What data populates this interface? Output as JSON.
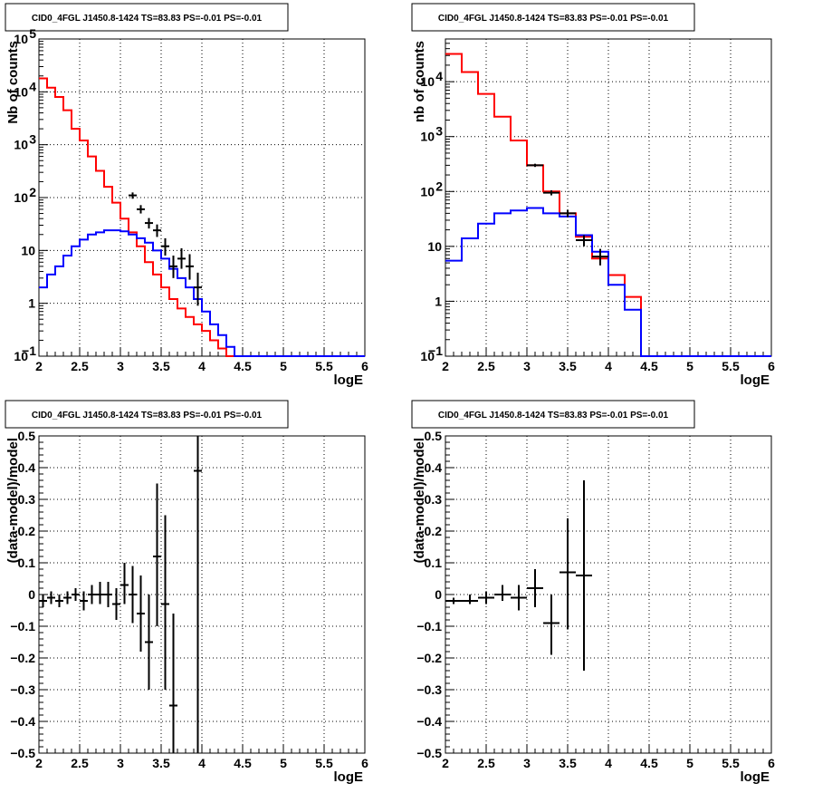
{
  "chart_data": [
    {
      "type": "line",
      "title": "CID0_4FGL J1450.8-1424 TS=83.83 PS=-0.01 PS=-0.01",
      "xlabel": "logE",
      "ylabel": "Nb of counts",
      "xlim": [
        2,
        6
      ],
      "ylim": [
        0.1,
        100000
      ],
      "yscale": "log",
      "grid": true,
      "xticks": [
        "2",
        "2.5",
        "3",
        "3.5",
        "4",
        "4.5",
        "5",
        "5.5",
        "6"
      ],
      "yticks": [
        {
          "v": 0.1,
          "label": "10",
          "exp": "−1"
        },
        {
          "v": 1,
          "label": "1"
        },
        {
          "v": 10,
          "label": "10"
        },
        {
          "v": 100,
          "label": "10",
          "exp": "2"
        },
        {
          "v": 1000,
          "label": "10",
          "exp": "3"
        },
        {
          "v": 10000,
          "label": "10",
          "exp": "4"
        },
        {
          "v": 100000,
          "label": "10",
          "exp": "5"
        }
      ],
      "bin_edges": [
        2.0,
        2.1,
        2.2,
        2.3,
        2.4,
        2.5,
        2.6,
        2.7,
        2.8,
        2.9,
        3.0,
        3.1,
        3.2,
        3.3,
        3.4,
        3.5,
        3.6,
        3.7,
        3.8,
        3.9,
        4.0,
        4.1,
        4.2,
        4.3,
        4.4,
        4.5,
        4.6,
        4.7,
        4.8,
        4.9,
        5.0,
        5.1,
        5.2,
        5.3,
        5.4,
        5.5,
        5.6,
        5.7,
        5.8,
        5.9,
        6.0
      ],
      "series": [
        {
          "color": "#ff0000",
          "values": [
            18000,
            12000,
            8000,
            4500,
            2000,
            1200,
            600,
            320,
            160,
            80,
            40,
            22,
            12,
            6,
            3.5,
            2.0,
            1.2,
            0.8,
            0.55,
            0.4,
            0.3,
            0.2,
            0.14,
            0.1,
            0.1,
            0.1,
            0.1,
            0.1,
            0.1,
            0.1,
            0.1,
            0.1,
            0.1,
            0.1,
            0.1,
            0.1,
            0.1,
            0.1,
            0.1,
            0.1
          ]
        },
        {
          "color": "#0000ff",
          "values": [
            2,
            3.5,
            5,
            8,
            12,
            16,
            20,
            22,
            24,
            24,
            23,
            20,
            17,
            14,
            10,
            7,
            4.5,
            3,
            2,
            1.2,
            0.7,
            0.4,
            0.25,
            0.15,
            0.1,
            0.1,
            0.1,
            0.1,
            0.1,
            0.1,
            0.1,
            0.1,
            0.1,
            0.1,
            0.1,
            0.1,
            0.1,
            0.1,
            0.1,
            0.1
          ]
        }
      ],
      "data_points": [
        {
          "x": 3.15,
          "y": 110,
          "xerr": 0.05,
          "ylo": 95,
          "yhi": 125
        },
        {
          "x": 3.25,
          "y": 60,
          "xerr": 0.05,
          "ylo": 50,
          "yhi": 72
        },
        {
          "x": 3.35,
          "y": 33,
          "xerr": 0.05,
          "ylo": 26,
          "yhi": 41
        },
        {
          "x": 3.45,
          "y": 24,
          "xerr": 0.05,
          "ylo": 18,
          "yhi": 31
        },
        {
          "x": 3.55,
          "y": 12,
          "xerr": 0.05,
          "ylo": 8,
          "yhi": 17
        },
        {
          "x": 3.65,
          "y": 5,
          "xerr": 0.05,
          "ylo": 3,
          "yhi": 8
        },
        {
          "x": 3.75,
          "y": 7,
          "xerr": 0.05,
          "ylo": 4.5,
          "yhi": 11
        },
        {
          "x": 3.85,
          "y": 5,
          "xerr": 0.05,
          "ylo": 2.8,
          "yhi": 8.5
        },
        {
          "x": 3.95,
          "y": 2,
          "xerr": 0.05,
          "ylo": 0.9,
          "yhi": 3.8
        }
      ]
    },
    {
      "type": "line",
      "title": "CID0_4FGL J1450.8-1424 TS=83.83 PS=-0.01 PS=-0.01",
      "xlabel": "logE",
      "ylabel": "nb of counts",
      "xlim": [
        2,
        6
      ],
      "ylim": [
        0.1,
        60000
      ],
      "yscale": "log",
      "grid": true,
      "xticks": [
        "2",
        "2.5",
        "3",
        "3.5",
        "4",
        "4.5",
        "5",
        "5.5",
        "6"
      ],
      "yticks": [
        {
          "v": 0.1,
          "label": "10",
          "exp": "−1"
        },
        {
          "v": 1,
          "label": "1"
        },
        {
          "v": 10,
          "label": "10"
        },
        {
          "v": 100,
          "label": "10",
          "exp": "2"
        },
        {
          "v": 1000,
          "label": "10",
          "exp": "3"
        },
        {
          "v": 10000,
          "label": "10",
          "exp": "4"
        }
      ],
      "bin_edges": [
        2.0,
        2.2,
        2.4,
        2.6,
        2.8,
        3.0,
        3.2,
        3.4,
        3.6,
        3.8,
        4.0,
        4.2,
        4.4,
        4.6,
        4.8,
        5.0,
        5.2,
        5.4,
        5.6,
        5.8,
        6.0
      ],
      "series": [
        {
          "color": "#ff0000",
          "values": [
            32000,
            15000,
            6000,
            2300,
            850,
            300,
            100,
            40,
            15,
            6,
            3,
            1.2,
            0.1,
            0.1,
            0.1,
            0.1,
            0.1,
            0.1,
            0.1,
            0.1
          ]
        },
        {
          "color": "#0000ff",
          "values": [
            5.5,
            14,
            26,
            40,
            45,
            50,
            40,
            35,
            16,
            8,
            2,
            0.7,
            0.1,
            0.1,
            0.1,
            0.1,
            0.1,
            0.1,
            0.1,
            0.1
          ]
        }
      ],
      "data_points": [
        {
          "x": 3.1,
          "y": 300,
          "xerr": 0.1,
          "ylo": 280,
          "yhi": 320
        },
        {
          "x": 3.3,
          "y": 95,
          "xerr": 0.1,
          "ylo": 85,
          "yhi": 105
        },
        {
          "x": 3.5,
          "y": 40,
          "xerr": 0.1,
          "ylo": 34,
          "yhi": 46
        },
        {
          "x": 3.7,
          "y": 13,
          "xerr": 0.1,
          "ylo": 10,
          "yhi": 16
        },
        {
          "x": 3.9,
          "y": 6.5,
          "xerr": 0.1,
          "ylo": 4.5,
          "yhi": 9
        }
      ]
    },
    {
      "type": "scatter",
      "title": "CID0_4FGL J1450.8-1424 TS=83.83 PS=-0.01 PS=-0.01",
      "xlabel": "logE",
      "ylabel": "(data-model)/model",
      "xlim": [
        2,
        6
      ],
      "ylim": [
        -0.5,
        0.5
      ],
      "yscale": "linear",
      "grid": true,
      "xticks": [
        "2",
        "2.5",
        "3",
        "3.5",
        "4",
        "4.5",
        "5",
        "5.5",
        "6"
      ],
      "yticks": [
        {
          "v": -0.5,
          "label": "−0.5"
        },
        {
          "v": -0.4,
          "label": "−0.4"
        },
        {
          "v": -0.3,
          "label": "−0.3"
        },
        {
          "v": -0.2,
          "label": "−0.2"
        },
        {
          "v": -0.1,
          "label": "−0.1"
        },
        {
          "v": 0,
          "label": "0"
        },
        {
          "v": 0.1,
          "label": "0.1"
        },
        {
          "v": 0.2,
          "label": "0.2"
        },
        {
          "v": 0.3,
          "label": "0.3"
        },
        {
          "v": 0.4,
          "label": "0.4"
        },
        {
          "v": 0.5,
          "label": "0.5"
        }
      ],
      "data_points": [
        {
          "x": 2.05,
          "y": -0.02,
          "xerr": 0.05,
          "ylo": -0.04,
          "yhi": 0.0
        },
        {
          "x": 2.15,
          "y": -0.01,
          "xerr": 0.05,
          "ylo": -0.03,
          "yhi": 0.01
        },
        {
          "x": 2.25,
          "y": -0.02,
          "xerr": 0.05,
          "ylo": -0.04,
          "yhi": 0.0
        },
        {
          "x": 2.35,
          "y": -0.01,
          "xerr": 0.05,
          "ylo": -0.03,
          "yhi": 0.01
        },
        {
          "x": 2.45,
          "y": 0.0,
          "xerr": 0.05,
          "ylo": -0.02,
          "yhi": 0.02
        },
        {
          "x": 2.55,
          "y": -0.02,
          "xerr": 0.05,
          "ylo": -0.05,
          "yhi": 0.01
        },
        {
          "x": 2.65,
          "y": 0.0,
          "xerr": 0.05,
          "ylo": -0.03,
          "yhi": 0.03
        },
        {
          "x": 2.75,
          "y": 0.0,
          "xerr": 0.05,
          "ylo": -0.03,
          "yhi": 0.04
        },
        {
          "x": 2.85,
          "y": 0.0,
          "xerr": 0.05,
          "ylo": -0.04,
          "yhi": 0.04
        },
        {
          "x": 2.95,
          "y": -0.03,
          "xerr": 0.05,
          "ylo": -0.08,
          "yhi": 0.02
        },
        {
          "x": 3.05,
          "y": 0.03,
          "xerr": 0.05,
          "ylo": -0.03,
          "yhi": 0.1
        },
        {
          "x": 3.15,
          "y": 0.0,
          "xerr": 0.05,
          "ylo": -0.09,
          "yhi": 0.09
        },
        {
          "x": 3.25,
          "y": -0.06,
          "xerr": 0.05,
          "ylo": -0.18,
          "yhi": 0.06
        },
        {
          "x": 3.35,
          "y": -0.15,
          "xerr": 0.05,
          "ylo": -0.3,
          "yhi": 0.0
        },
        {
          "x": 3.45,
          "y": 0.12,
          "xerr": 0.05,
          "ylo": -0.1,
          "yhi": 0.35
        },
        {
          "x": 3.55,
          "y": -0.03,
          "xerr": 0.05,
          "ylo": -0.3,
          "yhi": 0.25
        },
        {
          "x": 3.65,
          "y": -0.35,
          "xerr": 0.05,
          "ylo": -0.5,
          "yhi": -0.06
        },
        {
          "x": 3.95,
          "y": 0.39,
          "xerr": 0.05,
          "ylo": -0.5,
          "yhi": 0.5
        }
      ]
    },
    {
      "type": "scatter",
      "title": "CID0_4FGL J1450.8-1424 TS=83.83 PS=-0.01 PS=-0.01",
      "xlabel": "logE",
      "ylabel": "(data-model)/model",
      "xlim": [
        2,
        6
      ],
      "ylim": [
        -0.5,
        0.5
      ],
      "yscale": "linear",
      "grid": true,
      "xticks": [
        "2",
        "2.5",
        "3",
        "3.5",
        "4",
        "4.5",
        "5",
        "5.5",
        "6"
      ],
      "yticks": [
        {
          "v": -0.5,
          "label": "−0.5"
        },
        {
          "v": -0.4,
          "label": "−0.4"
        },
        {
          "v": -0.3,
          "label": "−0.3"
        },
        {
          "v": -0.2,
          "label": "−0.2"
        },
        {
          "v": -0.1,
          "label": "−0.1"
        },
        {
          "v": 0,
          "label": "0"
        },
        {
          "v": 0.1,
          "label": "0.1"
        },
        {
          "v": 0.2,
          "label": "0.2"
        },
        {
          "v": 0.3,
          "label": "0.3"
        },
        {
          "v": 0.4,
          "label": "0.4"
        },
        {
          "v": 0.5,
          "label": "0.5"
        }
      ],
      "data_points": [
        {
          "x": 2.1,
          "y": -0.02,
          "xerr": 0.1,
          "ylo": -0.03,
          "yhi": -0.01
        },
        {
          "x": 2.3,
          "y": -0.02,
          "xerr": 0.1,
          "ylo": -0.03,
          "yhi": 0.0
        },
        {
          "x": 2.5,
          "y": -0.01,
          "xerr": 0.1,
          "ylo": -0.03,
          "yhi": 0.01
        },
        {
          "x": 2.7,
          "y": 0.0,
          "xerr": 0.1,
          "ylo": -0.02,
          "yhi": 0.03
        },
        {
          "x": 2.9,
          "y": -0.01,
          "xerr": 0.1,
          "ylo": -0.05,
          "yhi": 0.03
        },
        {
          "x": 3.1,
          "y": 0.02,
          "xerr": 0.1,
          "ylo": -0.04,
          "yhi": 0.08
        },
        {
          "x": 3.3,
          "y": -0.09,
          "xerr": 0.1,
          "ylo": -0.19,
          "yhi": 0.0
        },
        {
          "x": 3.5,
          "y": 0.07,
          "xerr": 0.1,
          "ylo": -0.11,
          "yhi": 0.24
        },
        {
          "x": 3.7,
          "y": 0.06,
          "xerr": 0.1,
          "ylo": -0.24,
          "yhi": 0.36
        }
      ]
    }
  ]
}
